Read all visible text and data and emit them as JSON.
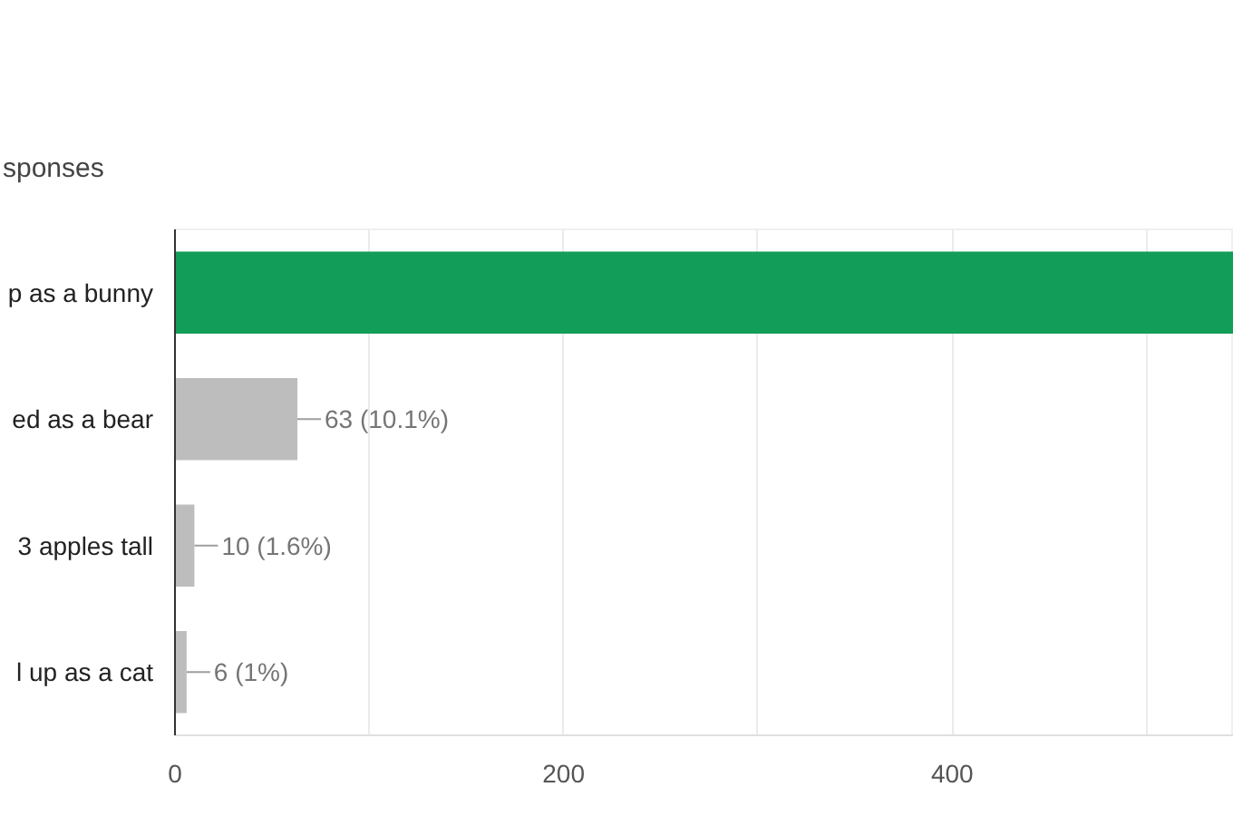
{
  "chart_data": {
    "type": "bar",
    "orientation": "horizontal",
    "subtitle": "sponses",
    "categories": [
      "p as a bunny",
      "ed as a bear",
      "3 apples tall",
      "l up as a cat"
    ],
    "values": [
      545,
      63,
      10,
      6
    ],
    "colors": [
      "#129d58",
      "#bdbdbd",
      "#bdbdbd",
      "#bdbdbd"
    ],
    "value_labels": [
      null,
      "63 (10.1%)",
      "10 (1.6%)",
      "6 (1%)"
    ],
    "xlim": [
      0,
      545
    ],
    "xticks": [
      0,
      {
        "value": 100,
        "label": null
      },
      200,
      {
        "value": 300,
        "label": null
      },
      400,
      {
        "value": 500,
        "label": null
      }
    ],
    "grid": "x"
  }
}
